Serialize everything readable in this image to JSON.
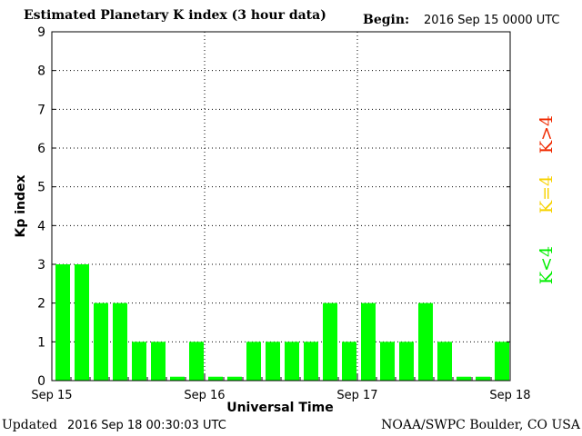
{
  "header": {
    "title": "Estimated Planetary K index (3 hour data)",
    "begin_label": "Begin:",
    "begin_value": "2016 Sep 15 0000 UTC"
  },
  "footer": {
    "updated_label": "Updated",
    "updated_value": "2016 Sep 18 00:30:03 UTC",
    "credit": "NOAA/SWPC Boulder, CO USA"
  },
  "legend": [
    {
      "label": "K<4",
      "color": "#00ee00"
    },
    {
      "label": "K=4",
      "color": "#f7d200"
    },
    {
      "label": "K>4",
      "color": "#f02a00"
    }
  ],
  "chart_data": {
    "type": "bar",
    "title": "Estimated Planetary K index (3 hour data)",
    "xlabel": "Universal Time",
    "ylabel": "Kp index",
    "ylim": [
      0,
      9
    ],
    "yticks": [
      0,
      1,
      2,
      3,
      4,
      5,
      6,
      7,
      8,
      9
    ],
    "x_tick_labels": [
      "Sep 15",
      "Sep 16",
      "Sep 17",
      "Sep 18"
    ],
    "bar_color": "#00ff00",
    "interval_hours": 3,
    "values": [
      3,
      3,
      2,
      2,
      1,
      1,
      0.1,
      1,
      0.1,
      0.1,
      1,
      1,
      1,
      1,
      2,
      1,
      2,
      1,
      1,
      2,
      1,
      0.1,
      0.1,
      1
    ],
    "grid": "dotted"
  }
}
